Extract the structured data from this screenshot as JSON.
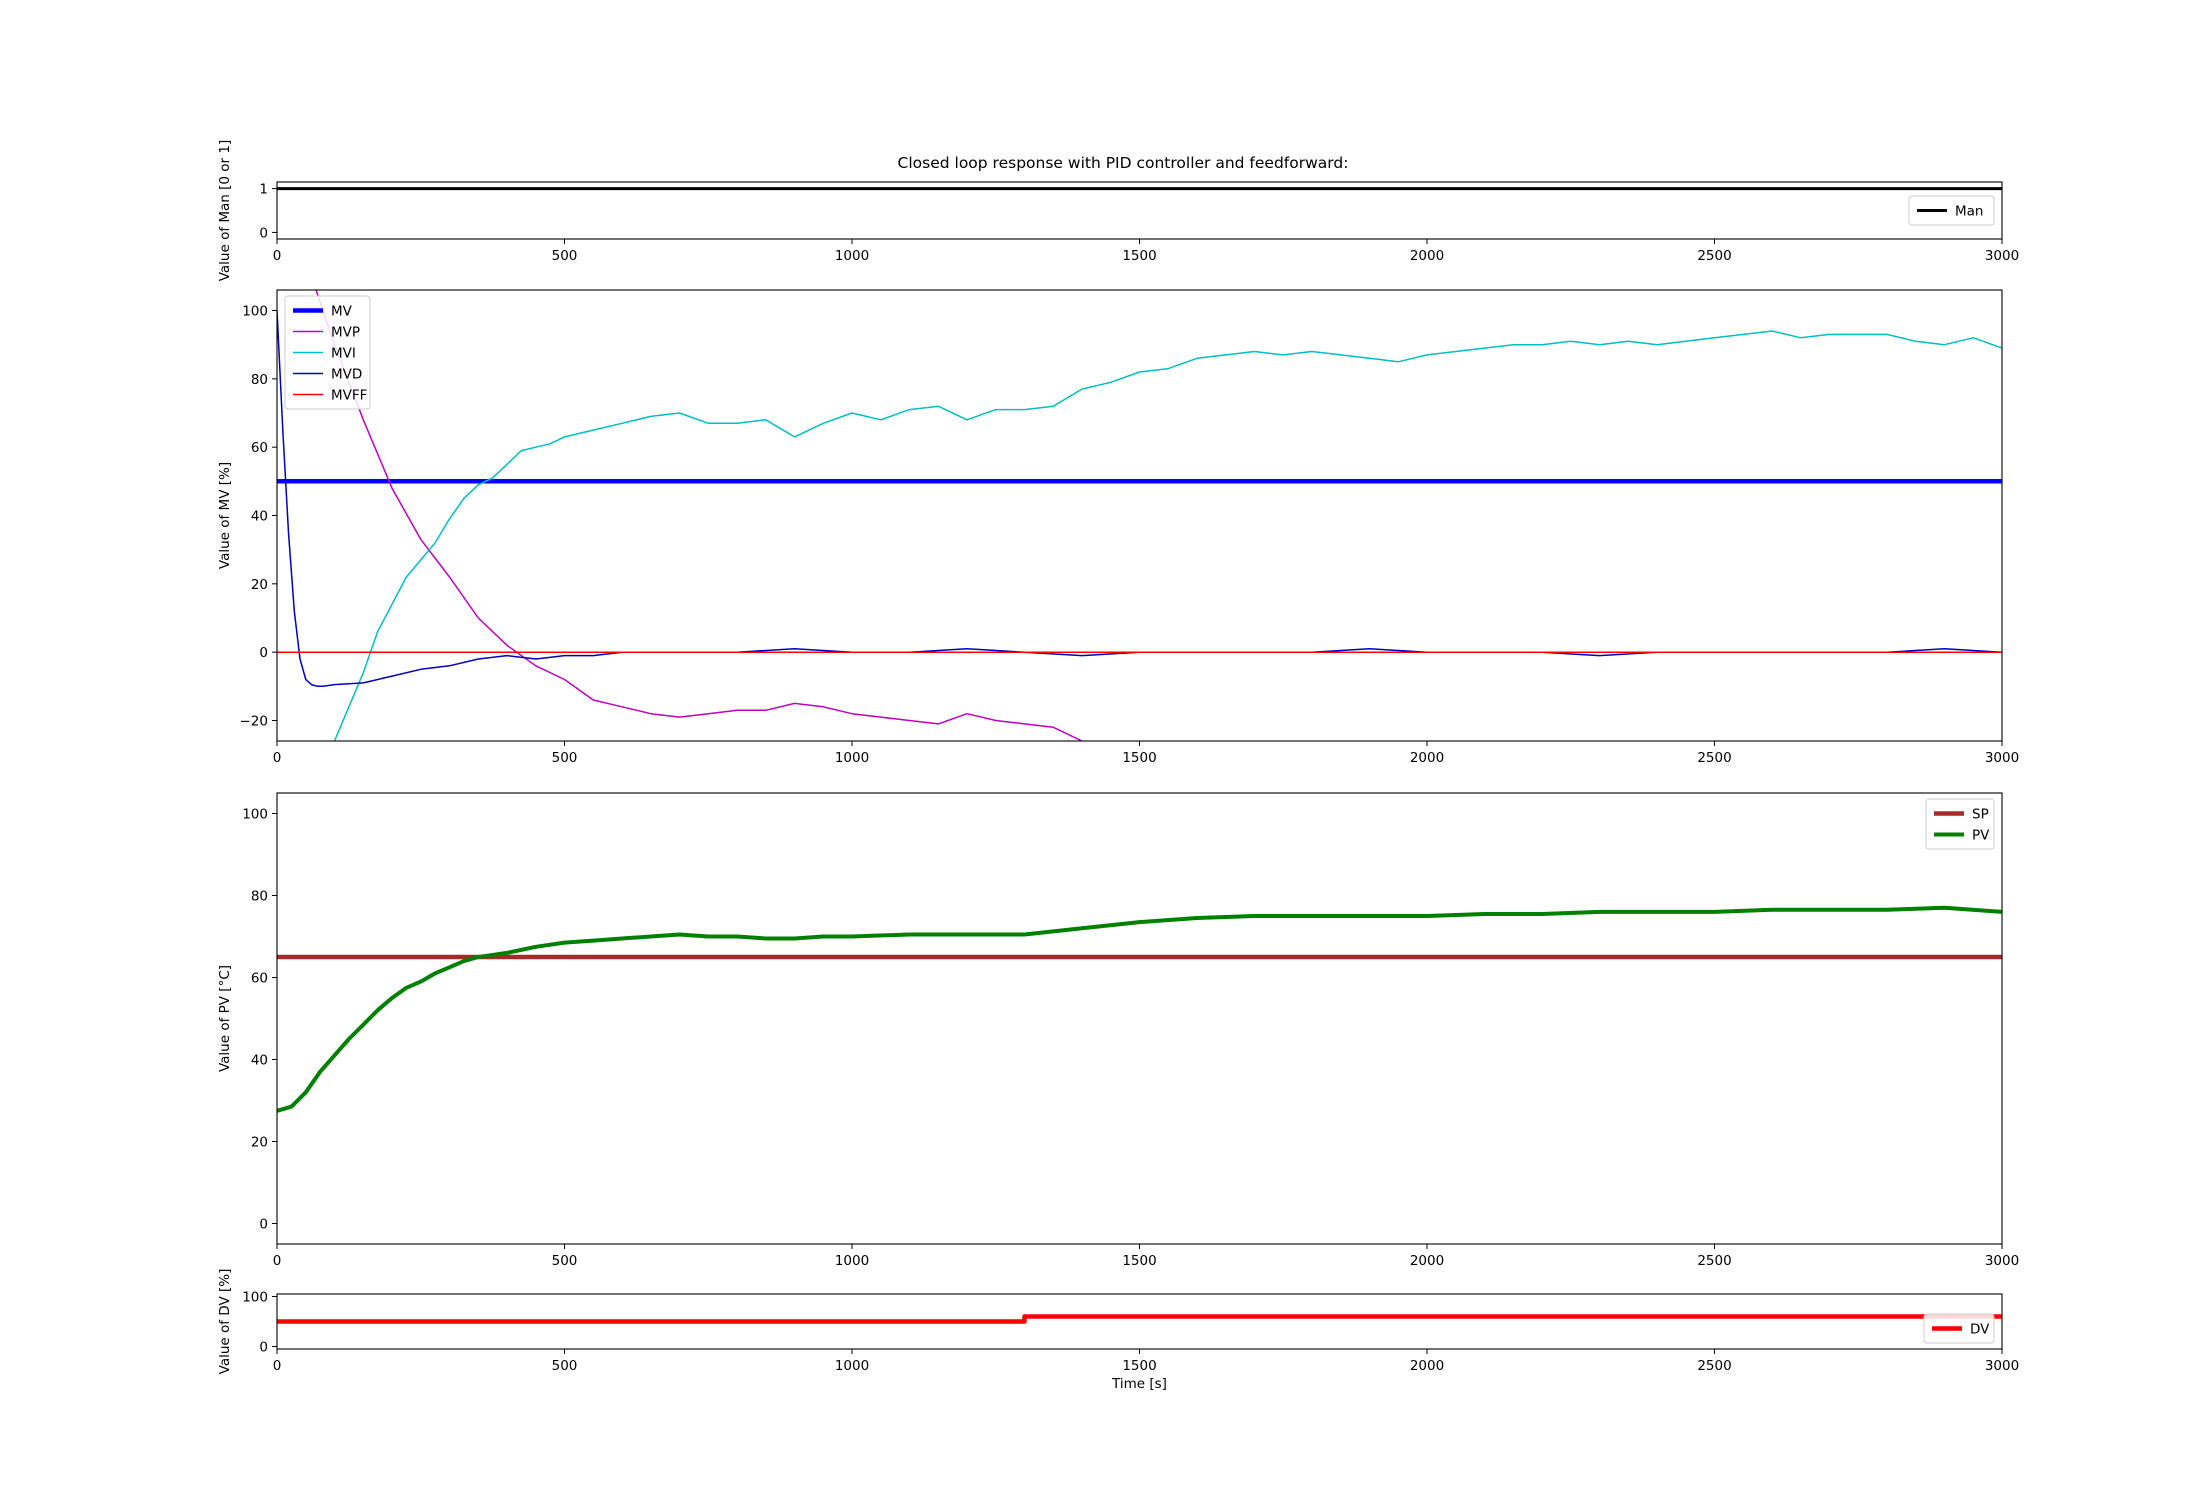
{
  "title": "Closed loop response with PID controller and feedforward:",
  "chart_data": [
    {
      "id": "man",
      "type": "line",
      "ylabel": "Value of Man [0 or 1]",
      "xlabel": "",
      "xlim": [
        0,
        3000
      ],
      "ylim": [
        -0.15,
        1.15
      ],
      "xticks": [
        "0",
        "500",
        "1000",
        "1500",
        "2000",
        "2500",
        "3000"
      ],
      "yticks": [
        "0",
        "1"
      ],
      "ytick_values": [
        0,
        1
      ],
      "legend": "right",
      "series": [
        {
          "name": "Man",
          "color": "#000000",
          "width": 3,
          "x": [
            0,
            3000
          ],
          "y": [
            1,
            1
          ]
        }
      ]
    },
    {
      "id": "mv",
      "type": "line",
      "ylabel": "Value of MV [%]",
      "xlabel": "",
      "xlim": [
        0,
        3000
      ],
      "ylim": [
        -26,
        106
      ],
      "xticks": [
        "0",
        "500",
        "1000",
        "1500",
        "2000",
        "2500",
        "3000"
      ],
      "yticks": [
        "−20",
        "0",
        "20",
        "40",
        "60",
        "80",
        "100"
      ],
      "ytick_values": [
        -20,
        0,
        20,
        40,
        60,
        80,
        100
      ],
      "legend": "top-left",
      "series": [
        {
          "name": "MV",
          "color": "#0000ff",
          "width": 4.5,
          "x": [
            0,
            3000
          ],
          "y": [
            50,
            50
          ]
        },
        {
          "name": "MVP",
          "color": "#bf00bf",
          "width": 1.5,
          "x": [
            50,
            100,
            150,
            200,
            250,
            300,
            350,
            400,
            450,
            500,
            550,
            600,
            650,
            700,
            750,
            800,
            850,
            900,
            950,
            1000,
            1050,
            1100,
            1150,
            1200,
            1250,
            1300,
            1350,
            1400
          ],
          "y": [
            115,
            90,
            68,
            48,
            33,
            22,
            10,
            2,
            -4,
            -8,
            -14,
            -16,
            -18,
            -19,
            -18,
            -17,
            -17,
            -15,
            -16,
            -18,
            -19,
            -20,
            -21,
            -18,
            -20,
            -21,
            -22,
            -26
          ]
        },
        {
          "name": "MVI",
          "color": "#00bfbf",
          "width": 1.5,
          "x": [
            100,
            125,
            150,
            175,
            200,
            225,
            250,
            275,
            300,
            325,
            350,
            375,
            400,
            425,
            450,
            475,
            500,
            550,
            600,
            650,
            700,
            750,
            800,
            850,
            900,
            950,
            1000,
            1050,
            1100,
            1150,
            1200,
            1250,
            1300,
            1350,
            1400,
            1450,
            1500,
            1550,
            1600,
            1650,
            1700,
            1750,
            1800,
            1850,
            1900,
            1950,
            2000,
            2050,
            2100,
            2150,
            2200,
            2250,
            2300,
            2350,
            2400,
            2450,
            2500,
            2550,
            2600,
            2650,
            2700,
            2750,
            2800,
            2850,
            2900,
            2950,
            3000
          ],
          "y": [
            -26,
            -16,
            -6,
            6,
            14,
            22,
            27,
            32,
            39,
            45,
            49,
            51,
            55,
            59,
            60,
            61,
            63,
            65,
            67,
            69,
            70,
            67,
            67,
            68,
            63,
            67,
            70,
            68,
            71,
            72,
            68,
            71,
            71,
            72,
            77,
            79,
            82,
            83,
            86,
            87,
            88,
            87,
            88,
            87,
            86,
            85,
            87,
            88,
            89,
            90,
            90,
            91,
            90,
            91,
            90,
            91,
            92,
            93,
            94,
            92,
            93,
            93,
            93,
            91,
            90,
            92,
            89
          ]
        },
        {
          "name": "MVD",
          "color": "#0000bf",
          "width": 1.5,
          "x": [
            0,
            10,
            20,
            30,
            40,
            50,
            60,
            70,
            80,
            100,
            150,
            200,
            250,
            300,
            350,
            400,
            450,
            500,
            550,
            600,
            700,
            800,
            900,
            1000,
            1100,
            1200,
            1300,
            1400,
            1500,
            1600,
            1700,
            1800,
            1900,
            2000,
            2100,
            2200,
            2300,
            2400,
            2500,
            2600,
            2700,
            2800,
            2900,
            3000
          ],
          "y": [
            100,
            65,
            35,
            12,
            -2,
            -8,
            -9.5,
            -10,
            -10,
            -9.5,
            -9,
            -7,
            -5,
            -4,
            -2,
            -1,
            -2,
            -1,
            -1,
            0,
            0,
            0,
            1,
            0,
            0,
            1,
            0,
            -1,
            0,
            0,
            0,
            0,
            1,
            0,
            0,
            0,
            -1,
            0,
            0,
            0,
            0,
            0,
            1,
            0
          ]
        },
        {
          "name": "MVFF",
          "color": "#ff0000",
          "width": 1.5,
          "x": [
            0,
            3000
          ],
          "y": [
            0,
            0
          ]
        }
      ]
    },
    {
      "id": "pv",
      "type": "line",
      "ylabel": "Value of PV [°C]",
      "xlabel": "",
      "xlim": [
        0,
        3000
      ],
      "ylim": [
        -5,
        105
      ],
      "xticks": [
        "0",
        "500",
        "1000",
        "1500",
        "2000",
        "2500",
        "3000"
      ],
      "yticks": [
        "0",
        "20",
        "40",
        "60",
        "80",
        "100"
      ],
      "ytick_values": [
        0,
        20,
        40,
        60,
        80,
        100
      ],
      "legend": "top-right",
      "series": [
        {
          "name": "SP",
          "color": "#a52a2a",
          "width": 4.5,
          "x": [
            0,
            3000
          ],
          "y": [
            65,
            65
          ]
        },
        {
          "name": "PV",
          "color": "#008000",
          "width": 4,
          "x": [
            0,
            25,
            50,
            75,
            100,
            125,
            150,
            175,
            200,
            225,
            250,
            275,
            300,
            325,
            350,
            375,
            400,
            450,
            500,
            550,
            600,
            650,
            700,
            750,
            800,
            850,
            900,
            950,
            1000,
            1100,
            1200,
            1300,
            1400,
            1500,
            1600,
            1700,
            1800,
            1900,
            2000,
            2100,
            2200,
            2300,
            2400,
            2500,
            2600,
            2700,
            2800,
            2900,
            3000
          ],
          "y": [
            27.5,
            28.5,
            32,
            37,
            41,
            45,
            48.5,
            52,
            55,
            57.5,
            59,
            61,
            62.5,
            64,
            65,
            65.5,
            66,
            67.5,
            68.5,
            69,
            69.5,
            70,
            70.5,
            70,
            70,
            69.5,
            69.5,
            70,
            70,
            70.5,
            70.5,
            70.5,
            72,
            73.5,
            74.5,
            75,
            75,
            75,
            75,
            75.5,
            75.5,
            76,
            76,
            76,
            76.5,
            76.5,
            76.5,
            77,
            76
          ]
        }
      ]
    },
    {
      "id": "dv",
      "type": "line",
      "ylabel": "Value of DV [%]",
      "xlabel": "Time [s]",
      "xlim": [
        0,
        3000
      ],
      "ylim": [
        -5,
        105
      ],
      "xticks": [
        "0",
        "500",
        "1000",
        "1500",
        "2000",
        "2500",
        "3000"
      ],
      "yticks": [
        "0",
        "100"
      ],
      "ytick_values": [
        0,
        100
      ],
      "legend": "bottom-right",
      "series": [
        {
          "name": "DV",
          "color": "#ff0000",
          "width": 4.5,
          "x": [
            0,
            1300,
            1300,
            3000
          ],
          "y": [
            50,
            50,
            60,
            60
          ]
        }
      ]
    }
  ]
}
